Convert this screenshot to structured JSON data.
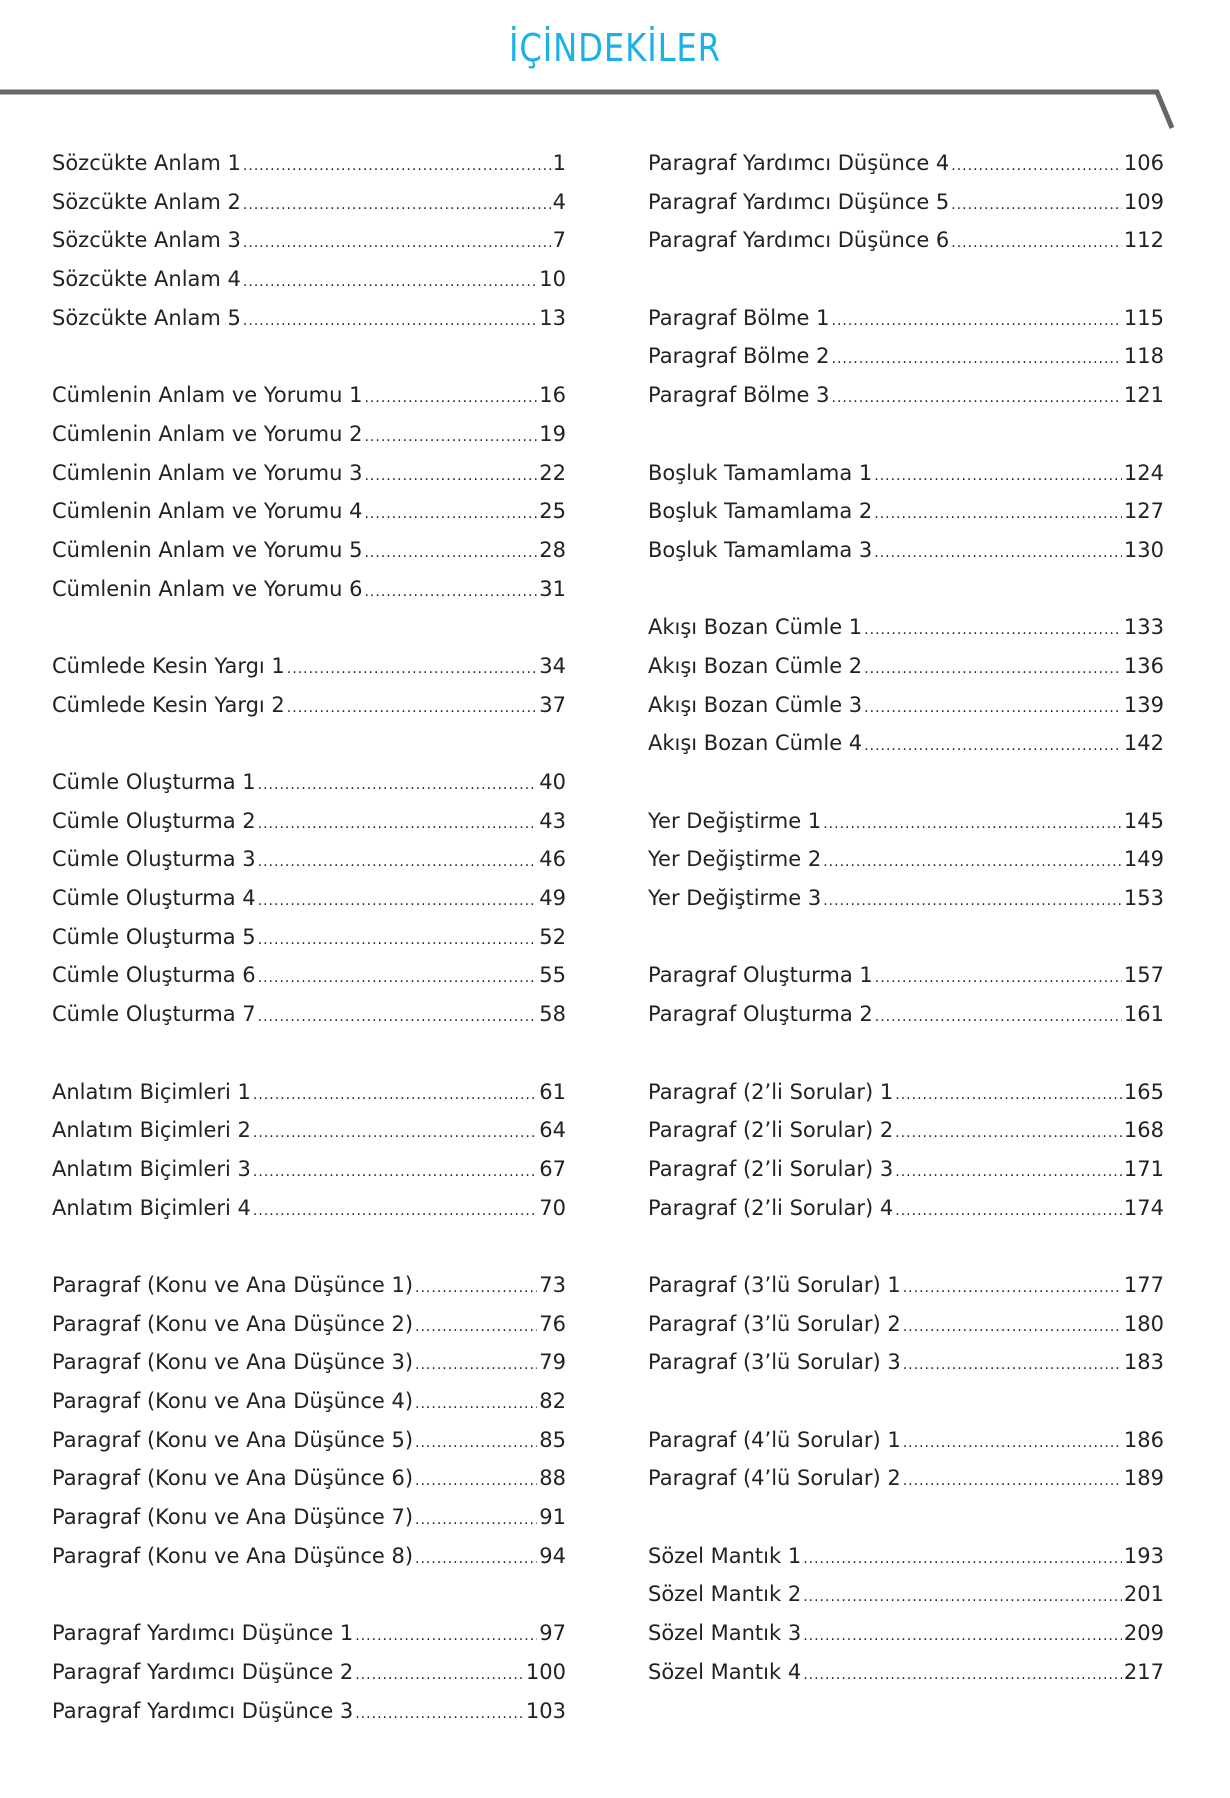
{
  "title": "İÇİNDEKİLER",
  "colors": {
    "title": "#1bb1e6",
    "rule": "#666666",
    "text": "#222222"
  },
  "columns": [
    [
      [
        [
          "Sözcükte Anlam 1",
          "1"
        ],
        [
          "Sözcükte Anlam 2",
          "4"
        ],
        [
          "Sözcükte Anlam 3",
          "7"
        ],
        [
          "Sözcükte Anlam 4",
          "10"
        ],
        [
          "Sözcükte Anlam 5",
          "13"
        ]
      ],
      [
        [
          "Cümlenin Anlam ve Yorumu 1",
          "16"
        ],
        [
          "Cümlenin Anlam ve Yorumu 2",
          "19"
        ],
        [
          "Cümlenin Anlam ve Yorumu 3",
          "22"
        ],
        [
          "Cümlenin Anlam ve Yorumu 4",
          "25"
        ],
        [
          "Cümlenin Anlam ve Yorumu 5",
          "28"
        ],
        [
          "Cümlenin Anlam ve Yorumu 6",
          "31"
        ]
      ],
      [
        [
          "Cümlede Kesin Yargı 1",
          "34"
        ],
        [
          "Cümlede Kesin Yargı 2",
          "37"
        ]
      ],
      [
        [
          "Cümle Oluşturma 1",
          "40"
        ],
        [
          "Cümle Oluşturma 2",
          "43"
        ],
        [
          "Cümle Oluşturma 3",
          "46"
        ],
        [
          "Cümle Oluşturma 4",
          "49"
        ],
        [
          "Cümle Oluşturma 5",
          "52"
        ],
        [
          "Cümle Oluşturma 6",
          "55"
        ],
        [
          "Cümle Oluşturma 7",
          "58"
        ]
      ],
      [
        [
          "Anlatım Biçimleri 1",
          "61"
        ],
        [
          "Anlatım Biçimleri 2",
          "64"
        ],
        [
          "Anlatım Biçimleri 3",
          "67"
        ],
        [
          "Anlatım Biçimleri 4",
          "70"
        ]
      ],
      [
        [
          "Paragraf (Konu ve Ana Düşünce 1)",
          "73"
        ],
        [
          "Paragraf (Konu ve Ana Düşünce 2)",
          "76"
        ],
        [
          "Paragraf (Konu ve Ana Düşünce 3)",
          "79"
        ],
        [
          "Paragraf (Konu ve Ana Düşünce 4)",
          "82"
        ],
        [
          "Paragraf (Konu ve Ana Düşünce 5)",
          "85"
        ],
        [
          "Paragraf (Konu ve Ana Düşünce 6)",
          "88"
        ],
        [
          "Paragraf (Konu ve Ana Düşünce 7)",
          "91"
        ],
        [
          "Paragraf (Konu ve Ana Düşünce 8)",
          "94"
        ]
      ],
      [
        [
          "Paragraf Yardımcı Düşünce 1",
          "97"
        ],
        [
          "Paragraf Yardımcı Düşünce 2",
          "100"
        ],
        [
          "Paragraf Yardımcı Düşünce 3",
          "103"
        ]
      ]
    ],
    [
      [
        [
          "Paragraf Yardımcı Düşünce 4",
          "106"
        ],
        [
          "Paragraf Yardımcı Düşünce 5",
          "109"
        ],
        [
          "Paragraf Yardımcı Düşünce 6",
          "112"
        ]
      ],
      [
        [
          "Paragraf Bölme 1",
          "115"
        ],
        [
          "Paragraf Bölme 2",
          "118"
        ],
        [
          "Paragraf Bölme 3",
          "121"
        ]
      ],
      [
        [
          "Boşluk Tamamlama 1",
          "124"
        ],
        [
          "Boşluk Tamamlama 2",
          "127"
        ],
        [
          "Boşluk Tamamlama 3",
          "130"
        ]
      ],
      [
        [
          "Akışı Bozan Cümle 1",
          "133"
        ],
        [
          "Akışı Bozan Cümle 2",
          "136"
        ],
        [
          "Akışı Bozan Cümle 3",
          "139"
        ],
        [
          "Akışı Bozan Cümle 4",
          "142"
        ]
      ],
      [
        [
          "Yer Değiştirme 1",
          "145"
        ],
        [
          "Yer Değiştirme 2",
          "149"
        ],
        [
          "Yer Değiştirme 3",
          "153"
        ]
      ],
      [
        [
          "Paragraf Oluşturma 1",
          "157"
        ],
        [
          "Paragraf Oluşturma 2",
          "161"
        ]
      ],
      [
        [
          "Paragraf (2’li Sorular) 1",
          "165"
        ],
        [
          "Paragraf (2’li Sorular) 2",
          "168"
        ],
        [
          "Paragraf (2’li Sorular) 3",
          "171"
        ],
        [
          "Paragraf (2’li Sorular) 4",
          "174"
        ]
      ],
      [
        [
          "Paragraf (3’lü Sorular) 1",
          "177"
        ],
        [
          "Paragraf (3’lü Sorular) 2",
          "180"
        ],
        [
          "Paragraf (3’lü Sorular) 3",
          "183"
        ]
      ],
      [
        [
          "Paragraf (4’lü Sorular) 1",
          "186"
        ],
        [
          "Paragraf (4’lü Sorular) 2",
          "189"
        ]
      ],
      [
        [
          "Sözel Mantık 1",
          "193"
        ],
        [
          "Sözel Mantık 2",
          "201"
        ],
        [
          "Sözel Mantık 3",
          "209"
        ],
        [
          "Sözel Mantık 4",
          "217"
        ]
      ]
    ]
  ]
}
